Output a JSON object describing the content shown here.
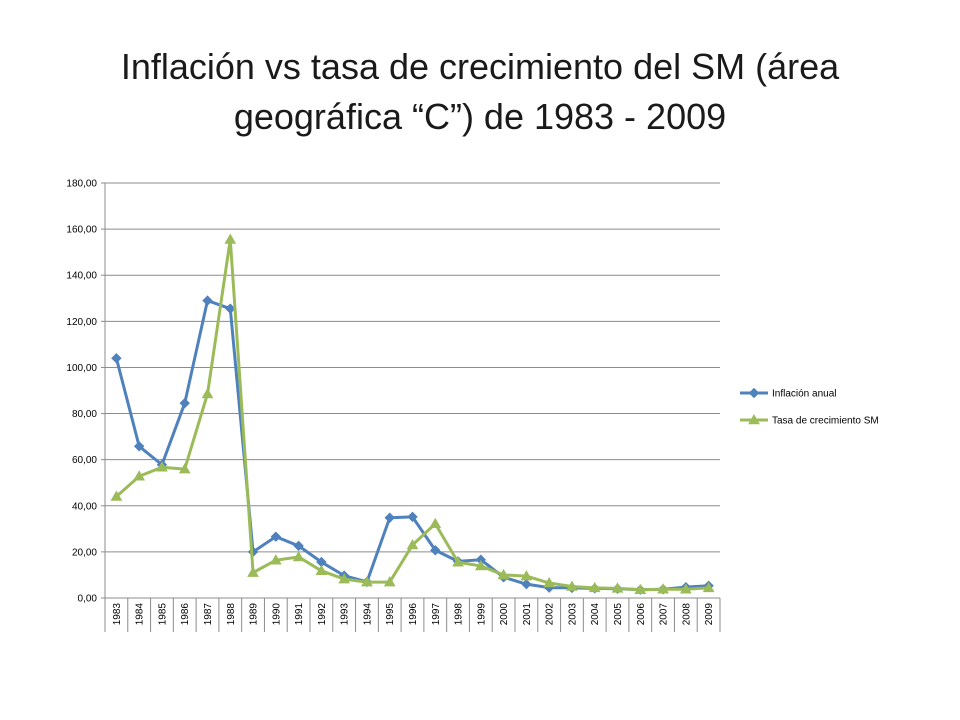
{
  "title": {
    "line1": "Inflación vs tasa de crecimiento del SM (área",
    "line2": "geográfica “C”) de 1983 - 2009"
  },
  "chart_data": {
    "type": "line",
    "categories": [
      "1983",
      "1984",
      "1985",
      "1986",
      "1987",
      "1988",
      "1989",
      "1990",
      "1991",
      "1992",
      "1993",
      "1994",
      "1995",
      "1996",
      "1997",
      "1998",
      "1999",
      "2000",
      "2001",
      "2002",
      "2003",
      "2004",
      "2005",
      "2006",
      "2007",
      "2008",
      "2009"
    ],
    "series": [
      {
        "name": "Inflación anual",
        "color": "#4f81bd",
        "marker": "diamond",
        "values": [
          104.0,
          65.8,
          57.8,
          84.5,
          129.0,
          125.5,
          20.0,
          26.6,
          22.6,
          15.6,
          9.7,
          7.0,
          34.8,
          35.2,
          20.7,
          15.9,
          16.6,
          9.0,
          6.0,
          4.5,
          4.4,
          4.2,
          4.0,
          3.6,
          3.8,
          4.7,
          5.3
        ]
      },
      {
        "name": "Tasa de crecimiento SM",
        "color": "#9bbb59",
        "marker": "triangle",
        "values": [
          44.0,
          52.8,
          56.7,
          55.9,
          88.5,
          155.5,
          11.0,
          16.4,
          17.8,
          11.8,
          8.2,
          6.9,
          6.9,
          23.0,
          32.2,
          15.5,
          13.9,
          10.0,
          9.5,
          6.5,
          5.0,
          4.4,
          4.2,
          3.6,
          3.8,
          3.8,
          4.4
        ]
      }
    ],
    "ylim": [
      0,
      180
    ],
    "yticks": [
      "0,00",
      "20,00",
      "40,00",
      "60,00",
      "80,00",
      "100,00",
      "120,00",
      "140,00",
      "160,00",
      "180,00"
    ],
    "ytick_values": [
      0,
      20,
      40,
      60,
      80,
      100,
      120,
      140,
      160,
      180
    ],
    "grid": "horizontal",
    "legend": "right",
    "xlabel": "",
    "ylabel": ""
  }
}
